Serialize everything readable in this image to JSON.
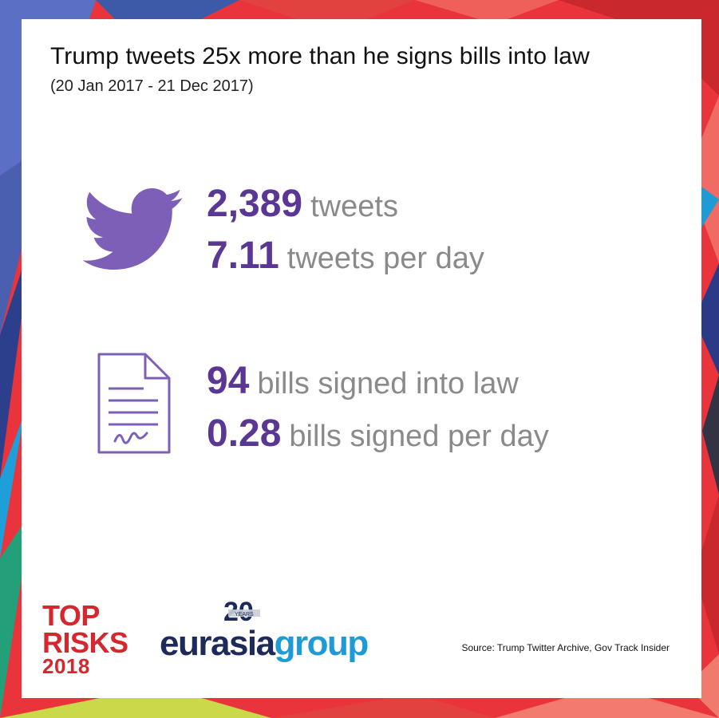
{
  "header": {
    "title": "Trump tweets 25x more than he signs bills into law",
    "subtitle": "(20 Jan 2017 - 21 Dec 2017)"
  },
  "tweets": {
    "icon": "twitter-bird-icon",
    "total_value": "2,389",
    "total_label": "tweets",
    "per_day_value": "7.11",
    "per_day_label": "tweets per day"
  },
  "bills": {
    "icon": "document-signature-icon",
    "total_value": "94",
    "total_label": "bills signed into law",
    "per_day_value": "0.28",
    "per_day_label": "bills signed per day"
  },
  "footer": {
    "top_risks_line1": "TOP",
    "top_risks_line2": "RISKS",
    "top_risks_year": "2018",
    "eurasia_word": "eurasia",
    "group_word": "group",
    "anniversary": "20",
    "anniversary_text": "YEARS",
    "source": "Source: Trump Twitter Archive, Gov Track Insider"
  },
  "colors": {
    "accent_purple": "#5b3795",
    "label_gray": "#8a8a8a",
    "top_risks_red": "#d4282e",
    "eurasia_navy": "#1d2a5a",
    "eurasia_blue": "#1e9bd7"
  }
}
